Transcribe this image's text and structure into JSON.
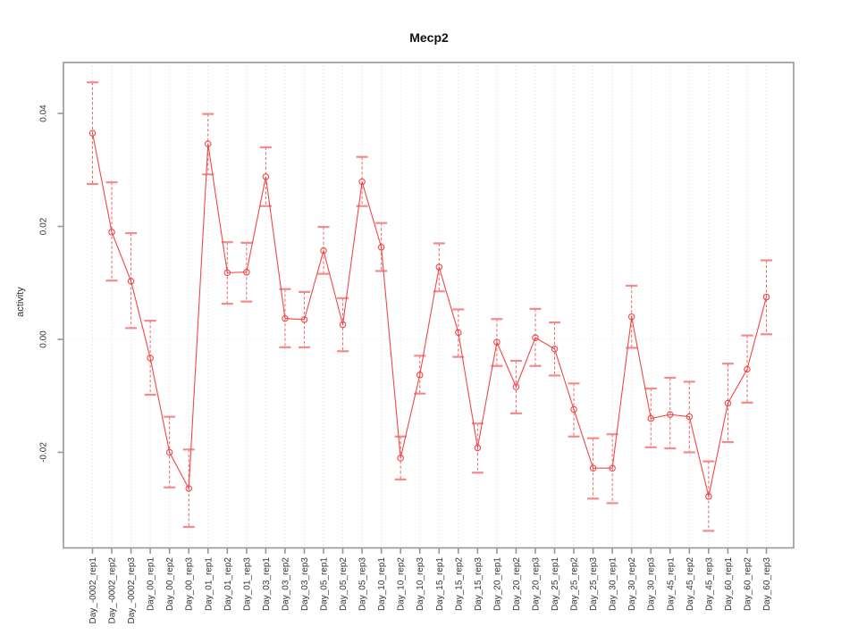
{
  "chart_data": {
    "type": "line",
    "title": "Mecp2",
    "xlabel": "",
    "ylabel": "activity",
    "ylim": [
      -0.0367,
      0.0493
    ],
    "yticks": [
      -0.02,
      0,
      0.02,
      0.04
    ],
    "ytick_labels": [
      "-0.02",
      "0.00",
      "0.02",
      "0.04"
    ],
    "legend_position": "none",
    "grid": {
      "vertical_dotted_per_category": true,
      "horizontal_zero_dotted": true
    },
    "marker": "open-circle",
    "error_bars": true,
    "colors": {
      "series": "#f04848",
      "error_cap": "#f58a8a",
      "frame": "#979797",
      "grid_vertical": "#d9d9d9",
      "zero_line": "#e4e4e4",
      "tick_text": "#333333",
      "title_text": "#111111"
    },
    "categories": [
      "Day_-0002_rep1",
      "Day_-0002_rep2",
      "Day_-0002_rep3",
      "Day_00_rep1",
      "Day_00_rep2",
      "Day_00_rep3",
      "Day_01_rep1",
      "Day_01_rep2",
      "Day_01_rep3",
      "Day_03_rep1",
      "Day_03_rep2",
      "Day_03_rep3",
      "Day_05_rep1",
      "Day_05_rep2",
      "Day_05_rep3",
      "Day_10_rep1",
      "Day_10_rep2",
      "Day_10_rep3",
      "Day_15_rep1",
      "Day_15_rep2",
      "Day_15_rep3",
      "Day_20_rep1",
      "Day_20_rep2",
      "Day_20_rep3",
      "Day_25_rep1",
      "Day_25_rep2",
      "Day_25_rep3",
      "Day_30_rep1",
      "Day_30_rep2",
      "Day_30_rep3",
      "Day_45_rep1",
      "Day_45_rep2",
      "Day_45_rep3",
      "Day_60_rep1",
      "Day_60_rep2",
      "Day_60_rep3"
    ],
    "series": [
      {
        "name": "Mecp2 activity",
        "values": [
          0.0365,
          0.019,
          0.0103,
          -0.0033,
          -0.02,
          -0.0264,
          0.0346,
          0.0118,
          0.0119,
          0.0288,
          0.0037,
          0.0035,
          0.0157,
          0.0026,
          0.0279,
          0.0163,
          -0.021,
          -0.0063,
          0.0128,
          0.0012,
          -0.0192,
          -0.0005,
          -0.0084,
          0.0003,
          -0.0017,
          -0.0124,
          -0.0228,
          -0.0228,
          0.004,
          -0.014,
          -0.0133,
          -0.0137,
          -0.0278,
          -0.0113,
          -0.0053,
          0.0075
        ],
        "err_lo": [
          0.0275,
          0.0104,
          0.002,
          -0.0098,
          -0.0262,
          -0.0332,
          0.0292,
          0.0063,
          0.0067,
          0.0236,
          -0.0014,
          -0.0014,
          0.0116,
          -0.0021,
          0.0236,
          0.0121,
          -0.0248,
          -0.0096,
          0.0085,
          -0.0031,
          -0.0236,
          -0.0047,
          -0.0131,
          -0.0047,
          -0.0064,
          -0.0172,
          -0.0282,
          -0.029,
          -0.0015,
          -0.0191,
          -0.0193,
          -0.02,
          -0.0339,
          -0.0182,
          -0.0112,
          0.0009
        ],
        "err_hi": [
          0.0455,
          0.0278,
          0.0188,
          0.0033,
          -0.0137,
          -0.0195,
          0.0399,
          0.0172,
          0.0171,
          0.034,
          0.0089,
          0.0084,
          0.0199,
          0.0073,
          0.0323,
          0.0206,
          -0.0172,
          -0.0029,
          0.017,
          0.0053,
          -0.0149,
          0.0036,
          -0.0038,
          0.0054,
          0.003,
          -0.0078,
          -0.0175,
          -0.0168,
          0.0095,
          -0.0087,
          -0.0068,
          -0.0075,
          -0.0216,
          -0.0043,
          0.0007,
          0.014
        ]
      }
    ]
  }
}
